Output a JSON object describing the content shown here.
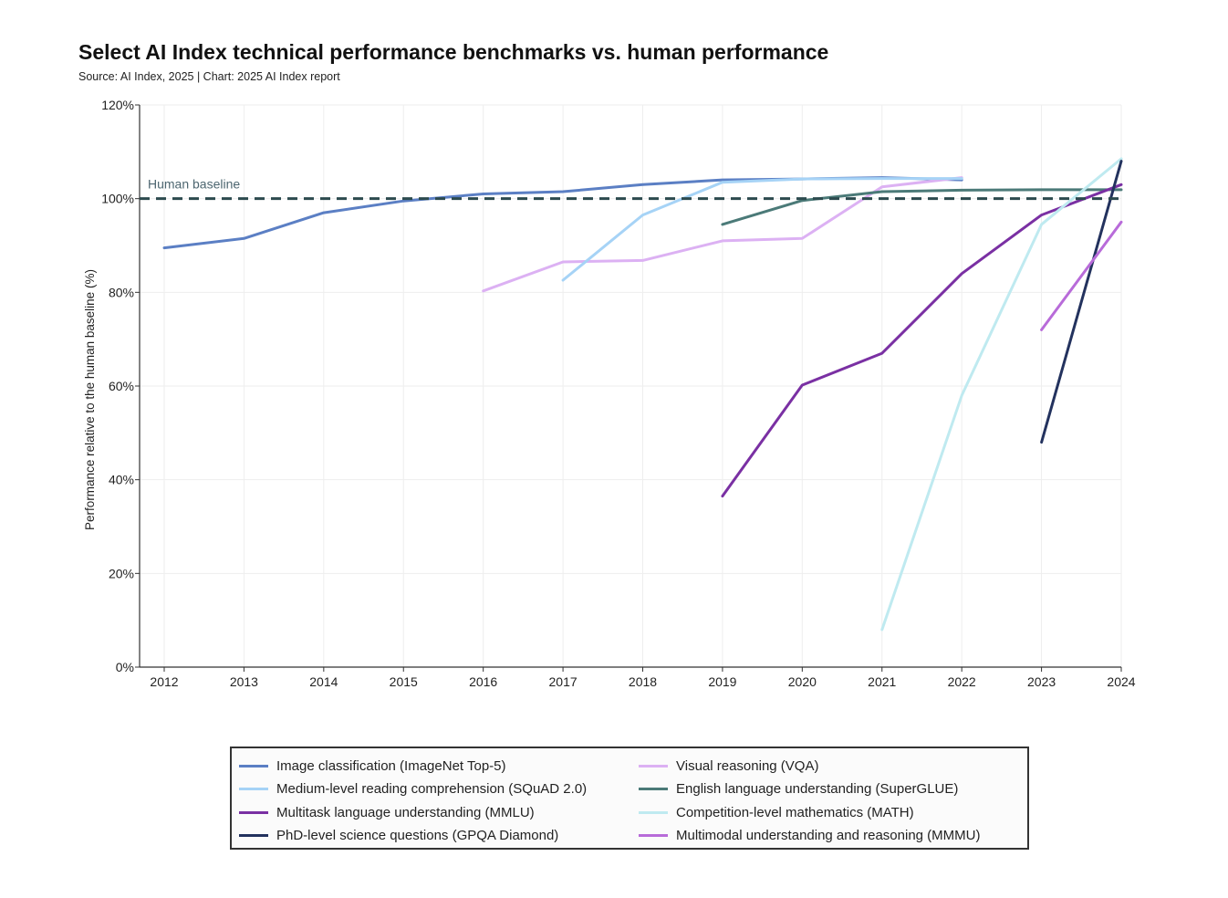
{
  "chart_data": {
    "type": "line",
    "title": "Select AI Index technical performance benchmarks vs. human performance",
    "subtitle": "Source: AI Index, 2025 | Chart: 2025 AI Index report",
    "xlabel": "",
    "ylabel": "Performance relative to the human baseline (%)",
    "x": [
      2012,
      2013,
      2014,
      2015,
      2016,
      2017,
      2018,
      2019,
      2020,
      2021,
      2022,
      2023,
      2024
    ],
    "x_tick_labels": [
      "2012",
      "2013",
      "2014",
      "2015",
      "2016",
      "2017",
      "2018",
      "2019",
      "2020",
      "2021",
      "2022",
      "2023",
      "2024"
    ],
    "ylim": [
      0,
      120
    ],
    "y_ticks": [
      0,
      20,
      40,
      60,
      80,
      100,
      120
    ],
    "y_tick_labels": [
      "0%",
      "20%",
      "40%",
      "60%",
      "80%",
      "100%",
      "120%"
    ],
    "grid": true,
    "baseline": {
      "value": 100,
      "label": "Human baseline",
      "color": "#2c4a4e"
    },
    "legend_position": "bottom",
    "series": [
      {
        "name": "Image classification (ImageNet Top-5)",
        "color": "#5b7fc4",
        "x": [
          2012,
          2013,
          2014,
          2015,
          2016,
          2017,
          2018,
          2019,
          2020,
          2021,
          2022
        ],
        "values": [
          89.5,
          91.5,
          97,
          99.5,
          101,
          101.5,
          103,
          104,
          104.2,
          104.5,
          104
        ]
      },
      {
        "name": "Visual reasoning (VQA)",
        "color": "#dcb1f3",
        "x": [
          2016,
          2017,
          2018,
          2019,
          2020,
          2021,
          2022
        ],
        "values": [
          80.3,
          86.5,
          86.8,
          91,
          91.5,
          102.5,
          104.5
        ]
      },
      {
        "name": "Medium-level reading comprehension (SQuAD 2.0)",
        "color": "#a6d3f6",
        "x": [
          2017,
          2018,
          2019,
          2020,
          2021,
          2022
        ],
        "values": [
          82.6,
          96.5,
          103.5,
          104.2,
          104.3,
          104.3
        ]
      },
      {
        "name": "English language understanding (SuperGLUE)",
        "color": "#4b7a78",
        "x": [
          2019,
          2020,
          2021,
          2022,
          2023,
          2024
        ],
        "values": [
          94.5,
          99.6,
          101.5,
          101.8,
          101.9,
          101.9
        ]
      },
      {
        "name": "Multitask language understanding (MMLU)",
        "color": "#7a30a3",
        "x": [
          2019,
          2020,
          2021,
          2022,
          2023,
          2024
        ],
        "values": [
          36.5,
          60.2,
          67,
          84,
          96.5,
          103
        ]
      },
      {
        "name": "Competition-level mathematics (MATH)",
        "color": "#bfeaf0",
        "x": [
          2021,
          2022,
          2023,
          2024
        ],
        "values": [
          8,
          58,
          94.5,
          108.5
        ]
      },
      {
        "name": "PhD-level science questions (GPQA Diamond)",
        "color": "#23325e",
        "x": [
          2023,
          2024
        ],
        "values": [
          48,
          108
        ]
      },
      {
        "name": "Multimodal understanding and reasoning (MMMU)",
        "color": "#b86bd9",
        "x": [
          2023,
          2024
        ],
        "values": [
          72,
          95
        ]
      }
    ]
  }
}
